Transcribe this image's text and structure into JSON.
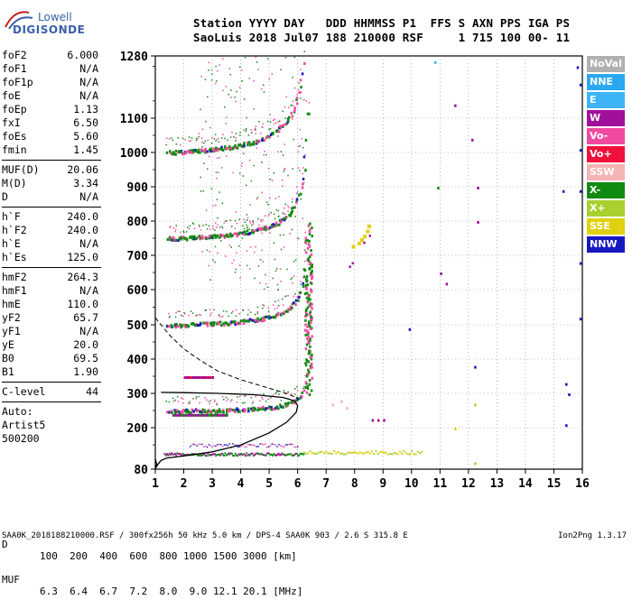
{
  "logo": {
    "brand_top": "Lowell",
    "brand_bottom": "DIGISONDE"
  },
  "header": {
    "line1": "Station YYYY DAY   DDD HHMMSS P1  FFS S AXN PPS IGA PS",
    "line2": "SaoLuis 2018 Jul07 188 210000 RSF     1 715 100 00- 11"
  },
  "params": [
    {
      "k": "foF2",
      "v": "6.000"
    },
    {
      "k": "foF1",
      "v": "N/A"
    },
    {
      "k": "foF1p",
      "v": "N/A"
    },
    {
      "k": "foE",
      "v": "N/A"
    },
    {
      "k": "foEp",
      "v": "1.13"
    },
    {
      "k": "fxI",
      "v": "6.50"
    },
    {
      "k": "foEs",
      "v": "5.60"
    },
    {
      "k": "fmin",
      "v": "1.45"
    },
    {
      "sep": true
    },
    {
      "k": "MUF(D)",
      "v": "20.06"
    },
    {
      "k": "M(D)",
      "v": "3.34"
    },
    {
      "k": "D",
      "v": "N/A"
    },
    {
      "sep": true
    },
    {
      "k": "h`F",
      "v": "240.0"
    },
    {
      "k": "h`F2",
      "v": "240.0"
    },
    {
      "k": "h`E",
      "v": "N/A"
    },
    {
      "k": "h`Es",
      "v": "125.0"
    },
    {
      "sep": true
    },
    {
      "k": "hmF2",
      "v": "264.3"
    },
    {
      "k": "hmF1",
      "v": "N/A"
    },
    {
      "k": "hmE",
      "v": "110.0"
    },
    {
      "k": "yF2",
      "v": "65.7"
    },
    {
      "k": "yF1",
      "v": "N/A"
    },
    {
      "k": "yE",
      "v": "20.0"
    },
    {
      "k": "B0",
      "v": "69.5"
    },
    {
      "k": "B1",
      "v": "1.90"
    },
    {
      "sep": true
    },
    {
      "k": "C-level",
      "v": "44"
    },
    {
      "sep": true
    },
    {
      "text": "Auto:"
    },
    {
      "text": "Artist5"
    },
    {
      "text": "500200"
    }
  ],
  "axes": {
    "x_ticks": [
      1,
      2,
      3,
      4,
      5,
      6,
      7,
      8,
      9,
      10,
      11,
      12,
      13,
      14,
      15,
      16
    ],
    "y_ticks": [
      80,
      200,
      300,
      400,
      500,
      600,
      700,
      800,
      900,
      1000,
      1100,
      1280
    ]
  },
  "legend": [
    {
      "label": "NoVal",
      "color": "#b0b0b0"
    },
    {
      "label": "NNE",
      "color": "#2aa8f0"
    },
    {
      "label": "E",
      "color": "#3cb4f5"
    },
    {
      "label": "W",
      "color": "#a0109a"
    },
    {
      "label": "Vo-",
      "color": "#f04aa0"
    },
    {
      "label": "Vo+",
      "color": "#f0103c"
    },
    {
      "label": "SSW",
      "color": "#f5b4b4"
    },
    {
      "label": "X-",
      "color": "#108a10"
    },
    {
      "label": "X+",
      "color": "#a8d030"
    },
    {
      "label": "SSE",
      "color": "#e0d010"
    },
    {
      "label": "NNW",
      "color": "#1818c0"
    }
  ],
  "footer": {
    "d_label": "D",
    "d_values": "100  200  400  600  800 1000 1500 3000 [km]",
    "muf_label": "MUF",
    "muf_values": "6.3  6.4  6.7  7.2  8.0  9.0 12.1 20.1 [MHz]",
    "file_line": "SAA0K_2018188210000.RSF / 300fx256h 50 kHz 5.0 km / DPS-4 SAA0K 903 / 2.6 S 315.8 E",
    "version": "Ion2Png 1.3.17"
  }
}
